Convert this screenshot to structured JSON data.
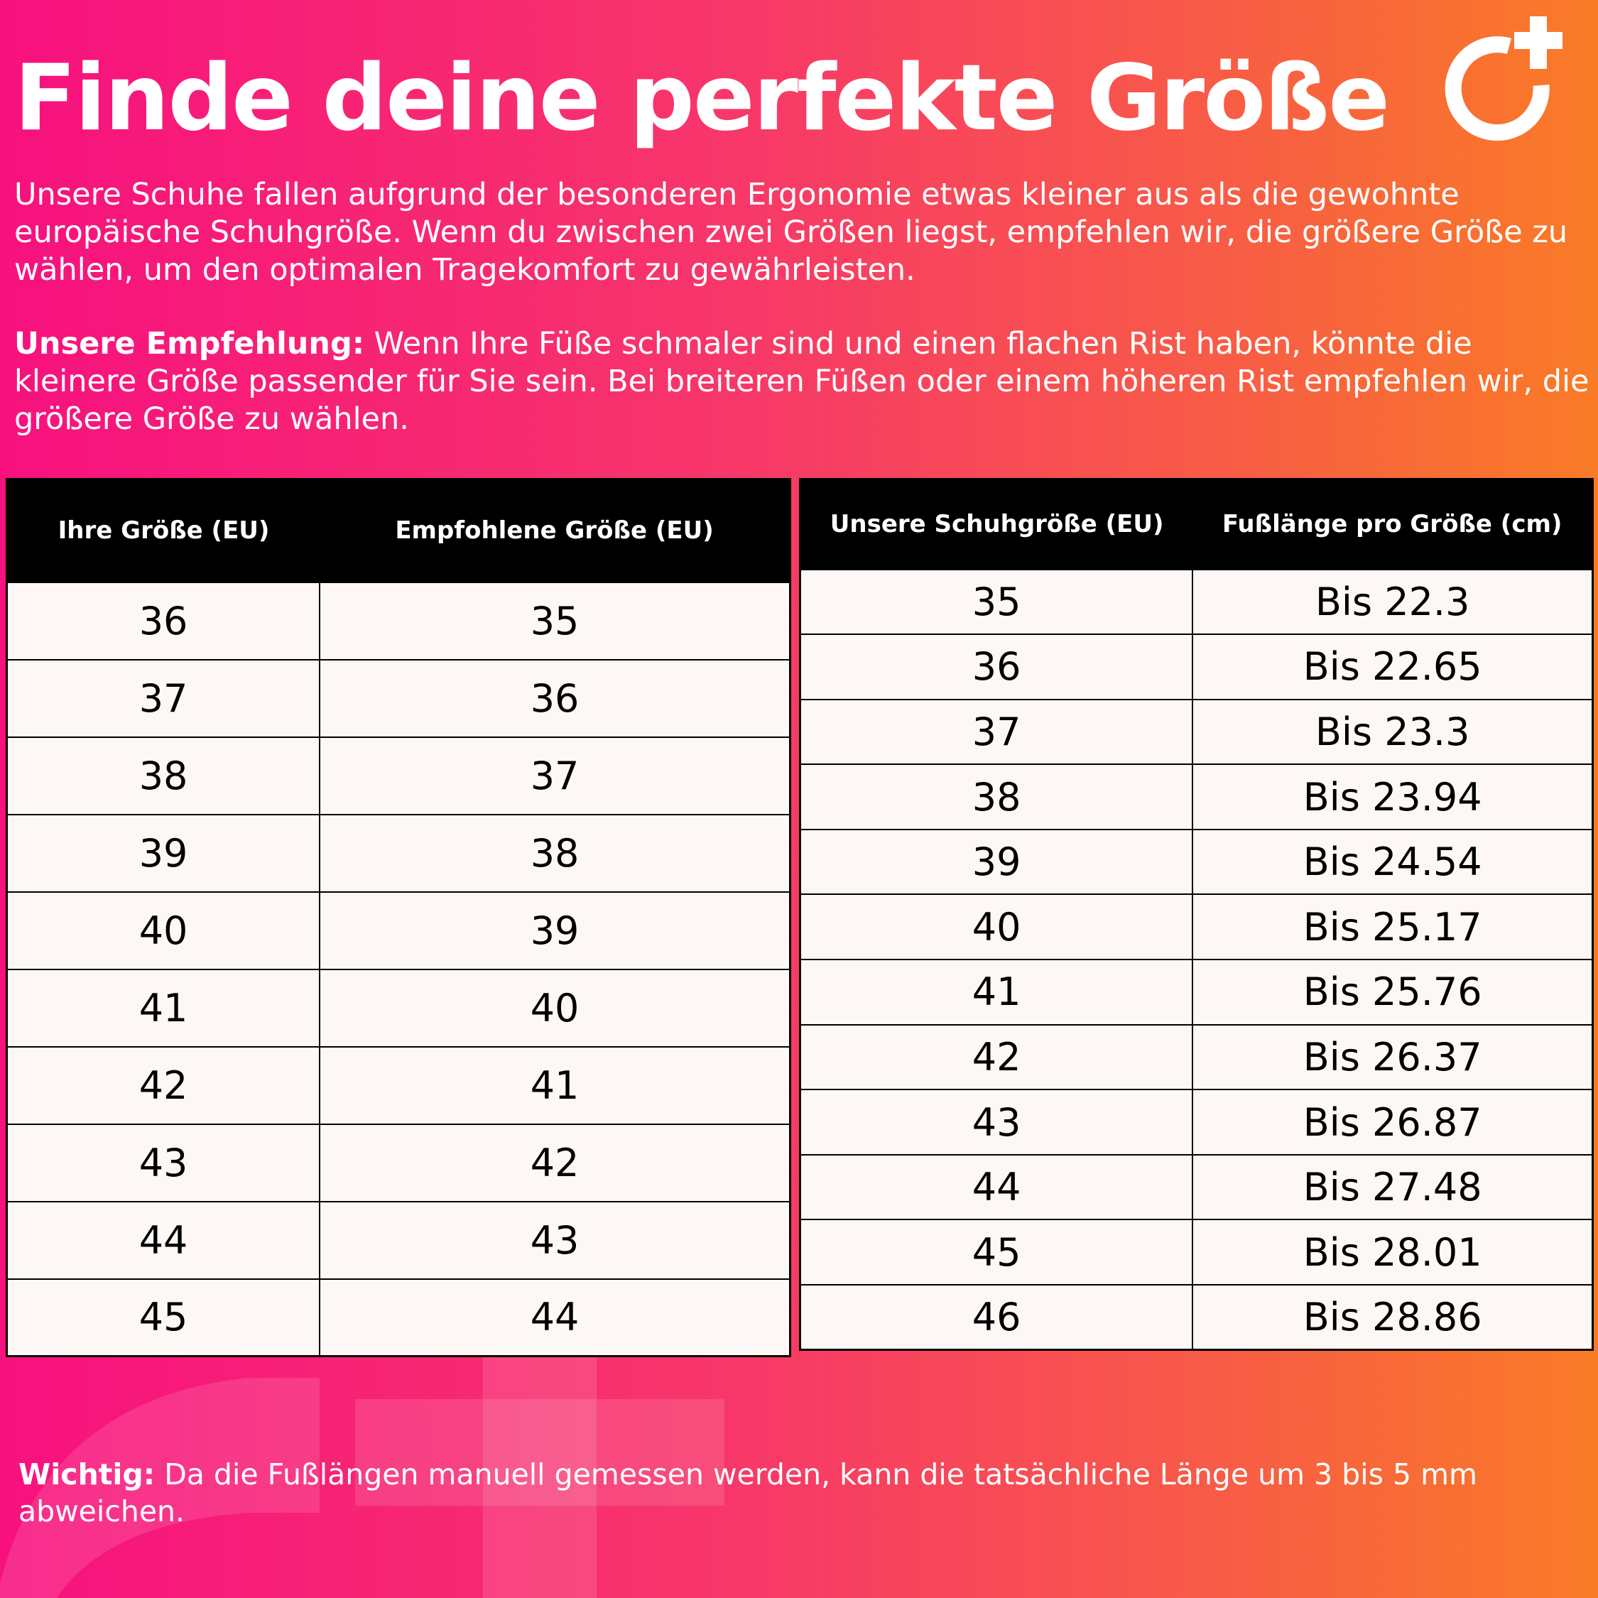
{
  "title": "Finde deine perfekte Größe",
  "intro": "Unsere Schuhe fallen aufgrund der besonderen Ergonomie etwas kleiner aus als die gewohnte europäische Schuhgröße. Wenn du zwischen zwei Größen liegst, empfehlen wir, die größere Größe zu wählen, um den optimalen Tragekomfort zu gewährleisten.",
  "recommendation": {
    "label": "Unsere Empfehlung:",
    "text": " Wenn Ihre Füße schmaler sind und einen flachen Rist haben, könnte die kleinere Größe passender für Sie sein. Bei breiteren Füßen oder einem höheren Rist empfehlen wir, die größere Größe zu wählen."
  },
  "table_conversion": {
    "headers": [
      "Ihre Größe (EU)",
      "Empfohlene Größe (EU)"
    ],
    "rows": [
      [
        "36",
        "35"
      ],
      [
        "37",
        "36"
      ],
      [
        "38",
        "37"
      ],
      [
        "39",
        "38"
      ],
      [
        "40",
        "39"
      ],
      [
        "41",
        "40"
      ],
      [
        "42",
        "41"
      ],
      [
        "43",
        "42"
      ],
      [
        "44",
        "43"
      ],
      [
        "45",
        "44"
      ]
    ]
  },
  "table_length": {
    "headers": [
      "Unsere Schuhgröße (EU)",
      "Fußlänge pro Größe (cm)"
    ],
    "rows": [
      [
        "35",
        "Bis 22.3"
      ],
      [
        "36",
        "Bis 22.65"
      ],
      [
        "37",
        "Bis 23.3"
      ],
      [
        "38",
        "Bis 23.94"
      ],
      [
        "39",
        "Bis 24.54"
      ],
      [
        "40",
        "Bis 25.17"
      ],
      [
        "41",
        "Bis 25.76"
      ],
      [
        "42",
        "Bis 26.37"
      ],
      [
        "43",
        "Bis 26.87"
      ],
      [
        "44",
        "Bis 27.48"
      ],
      [
        "45",
        "Bis 28.01"
      ],
      [
        "46",
        "Bis 28.86"
      ]
    ]
  },
  "note": {
    "label": "Wichtig:",
    "text": " Da die Fußlängen manuell gemessen werden, kann die tatsächliche Länge um 3 bis 5 mm abweichen."
  },
  "colors": {
    "gradient_start": "#f7117f",
    "gradient_end": "#f97b26",
    "table_header": "#000000",
    "table_body": "#fdf8f5"
  },
  "logo_icon": "circle-plus-logo"
}
